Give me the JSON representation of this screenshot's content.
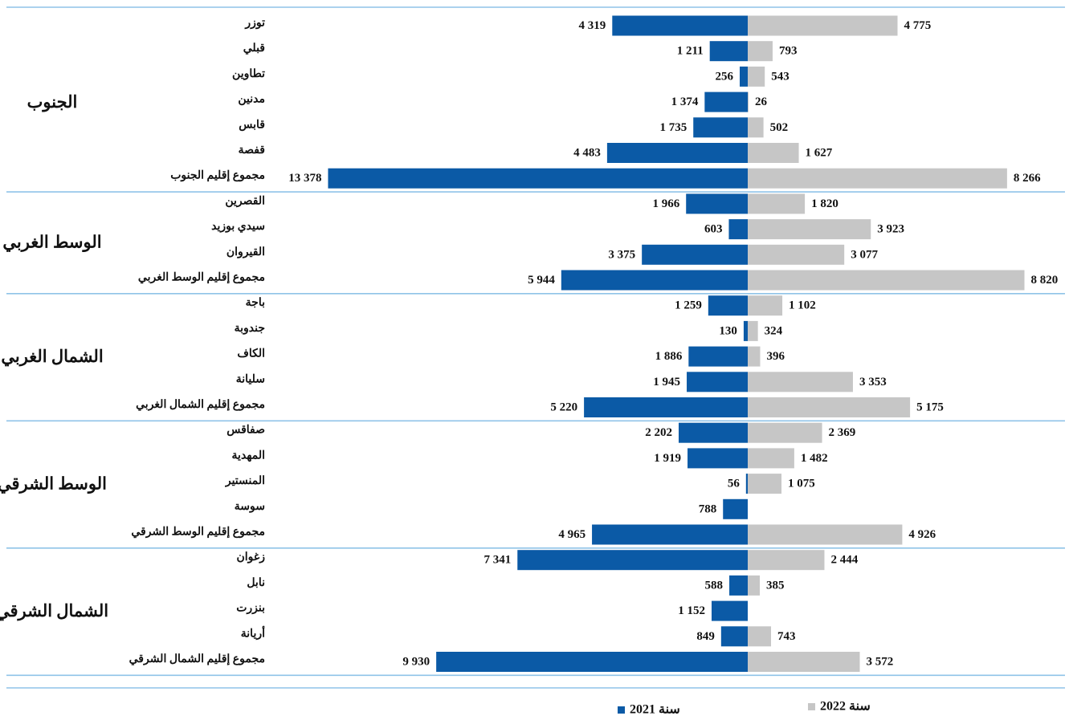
{
  "chart_data": {
    "type": "bar",
    "orientation": "horizontal-diverging",
    "colors": {
      "2021": "#0b5aa6",
      "2022": "#c6c6c6",
      "separator": "#8fc3e8"
    },
    "series": [
      {
        "name": "سنة 2021",
        "key": "2021"
      },
      {
        "name": "سنة 2022",
        "key": "2022"
      }
    ],
    "legend_position": "bottom",
    "groups": [
      {
        "name": "الجنوب",
        "rows": [
          {
            "label": "توزر",
            "v2021": 4319,
            "v2022": 4775,
            "t2021": "4 319",
            "t2022": "4 775"
          },
          {
            "label": "قبلي",
            "v2021": 1211,
            "v2022": 793,
            "t2021": "1 211",
            "t2022": "793"
          },
          {
            "label": "تطاوين",
            "v2021": 256,
            "v2022": 543,
            "t2021": "256",
            "t2022": "543"
          },
          {
            "label": "مدنين",
            "v2021": 1374,
            "v2022": 26,
            "t2021": "1 374",
            "t2022": "26"
          },
          {
            "label": "قابس",
            "v2021": 1735,
            "v2022": 502,
            "t2021": "1 735",
            "t2022": "502"
          },
          {
            "label": "قفصة",
            "v2021": 4483,
            "v2022": 1627,
            "t2021": "4 483",
            "t2022": "1 627"
          },
          {
            "label": "مجموع إقليم الجنوب",
            "v2021": 13378,
            "v2022": 8266,
            "t2021": "13 378",
            "t2022": "8 266"
          }
        ]
      },
      {
        "name": "الوسط الغربي",
        "rows": [
          {
            "label": "القصرين",
            "v2021": 1966,
            "v2022": 1820,
            "t2021": "1 966",
            "t2022": "1 820"
          },
          {
            "label": "سيدي بوزيد",
            "v2021": 603,
            "v2022": 3923,
            "t2021": "603",
            "t2022": "3 923"
          },
          {
            "label": "القيروان",
            "v2021": 3375,
            "v2022": 3077,
            "t2021": "3 375",
            "t2022": "3 077"
          },
          {
            "label": "مجموع إقليم الوسط الغربي",
            "v2021": 5944,
            "v2022": 8820,
            "t2021": "5 944",
            "t2022": "8 820"
          }
        ]
      },
      {
        "name": "الشمال الغربي",
        "rows": [
          {
            "label": "باجة",
            "v2021": 1259,
            "v2022": 1102,
            "t2021": "1 259",
            "t2022": "1 102"
          },
          {
            "label": "جندوبة",
            "v2021": 130,
            "v2022": 324,
            "t2021": "130",
            "t2022": "324"
          },
          {
            "label": "الكاف",
            "v2021": 1886,
            "v2022": 396,
            "t2021": "1 886",
            "t2022": "396"
          },
          {
            "label": "سليانة",
            "v2021": 1945,
            "v2022": 3353,
            "t2021": "1 945",
            "t2022": "3 353"
          },
          {
            "label": "مجموع إقليم الشمال الغربي",
            "v2021": 5220,
            "v2022": 5175,
            "t2021": "5 220",
            "t2022": "5 175"
          }
        ]
      },
      {
        "name": "الوسط الشرقي",
        "rows": [
          {
            "label": "صفاقس",
            "v2021": 2202,
            "v2022": 2369,
            "t2021": "2 202",
            "t2022": "2 369"
          },
          {
            "label": "المهدية",
            "v2021": 1919,
            "v2022": 1482,
            "t2021": "1 919",
            "t2022": "1 482"
          },
          {
            "label": "المنستير",
            "v2021": 56,
            "v2022": 1075,
            "t2021": "56",
            "t2022": "1 075"
          },
          {
            "label": "سوسة",
            "v2021": 788,
            "v2022": null,
            "t2021": "788",
            "t2022": ""
          },
          {
            "label": "مجموع إقليم الوسط الشرقي",
            "v2021": 4965,
            "v2022": 4926,
            "t2021": "4 965",
            "t2022": "4 926"
          }
        ]
      },
      {
        "name": "الشمال الشرقي",
        "rows": [
          {
            "label": "زغوان",
            "v2021": 7341,
            "v2022": 2444,
            "t2021": "7 341",
            "t2022": "2 444"
          },
          {
            "label": "نابل",
            "v2021": 588,
            "v2022": 385,
            "t2021": "588",
            "t2022": "385"
          },
          {
            "label": "بنزرت",
            "v2021": 1152,
            "v2022": null,
            "t2021": "1 152",
            "t2022": ""
          },
          {
            "label": "أريانة",
            "v2021": 849,
            "v2022": 743,
            "t2021": "849",
            "t2022": "743"
          },
          {
            "label": "مجموع إقليم الشمال الشرقي",
            "v2021": 9930,
            "v2022": 3572,
            "t2021": "9 930",
            "t2022": "3 572"
          }
        ]
      }
    ]
  }
}
